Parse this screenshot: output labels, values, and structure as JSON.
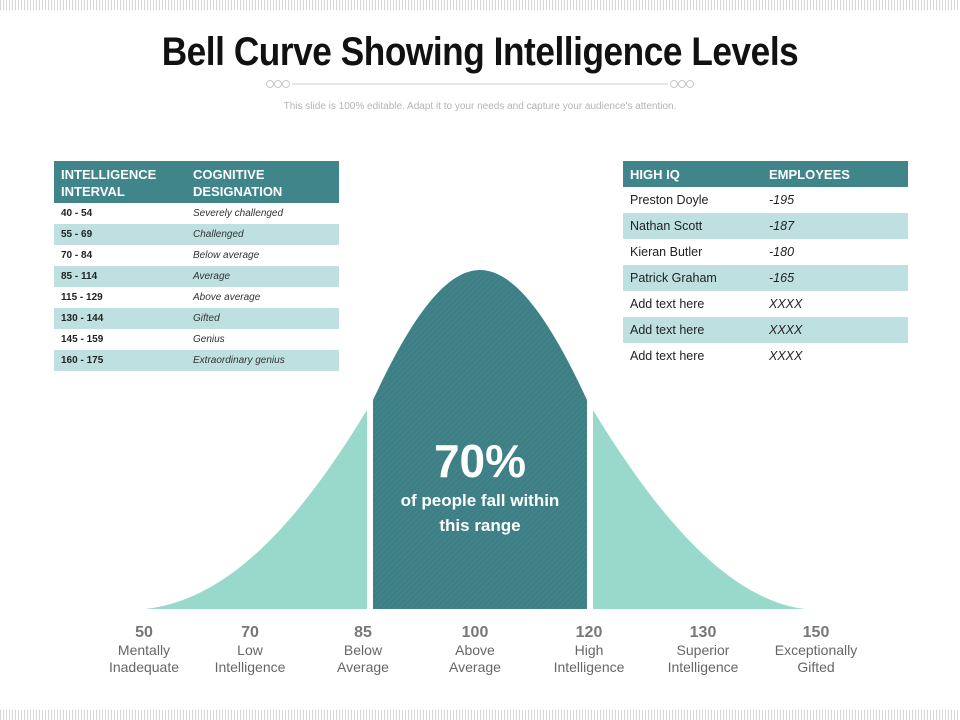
{
  "title": "Bell Curve Showing Intelligence Levels",
  "subtitle": "This slide is 100% editable. Adapt it to your needs and capture your audience's attention.",
  "colors": {
    "header": "#3f858a",
    "band": "#bfe0e0",
    "curve_light": "#99d9cc",
    "curve_dark": "#3d7f84"
  },
  "intelligence_table": {
    "headers": [
      [
        "INTELLIGENCE",
        "INTERVAL"
      ],
      [
        "COGNITIVE",
        "DESIGNATION"
      ]
    ],
    "rows": [
      {
        "interval": "40 - 54",
        "designation": "Severely challenged"
      },
      {
        "interval": "55 - 69",
        "designation": "Challenged"
      },
      {
        "interval": "70 - 84",
        "designation": "Below average"
      },
      {
        "interval": "85 - 114",
        "designation": "Average"
      },
      {
        "interval": "115 - 129",
        "designation": "Above average"
      },
      {
        "interval": "130 - 144",
        "designation": "Gifted"
      },
      {
        "interval": "145 - 159",
        "designation": "Genius"
      },
      {
        "interval": "160 - 175",
        "designation": "Extraordinary genius"
      }
    ]
  },
  "employee_table": {
    "headers": [
      "HIGH IQ",
      "EMPLOYEES"
    ],
    "rows": [
      {
        "name": "Preston Doyle",
        "value": "-195"
      },
      {
        "name": "Nathan Scott",
        "value": "-187"
      },
      {
        "name": "Kieran Butler",
        "value": "-180"
      },
      {
        "name": "Patrick Graham",
        "value": "-165"
      },
      {
        "name": "Add text here",
        "value": "XXXX"
      },
      {
        "name": "Add text here",
        "value": "XXXX"
      },
      {
        "name": "Add text here",
        "value": "XXXX"
      }
    ]
  },
  "center": {
    "percent": "70%",
    "caption_line1": "of people fall within",
    "caption_line2": "this range"
  },
  "axis": [
    {
      "value": "50",
      "line1": "Mentally",
      "line2": "Inadequate"
    },
    {
      "value": "70",
      "line1": "Low",
      "line2": "Intelligence"
    },
    {
      "value": "85",
      "line1": "Below",
      "line2": "Average"
    },
    {
      "value": "100",
      "line1": "Above",
      "line2": "Average"
    },
    {
      "value": "120",
      "line1": "High",
      "line2": "Intelligence"
    },
    {
      "value": "130",
      "line1": "Superior",
      "line2": "Intelligence"
    },
    {
      "value": "150",
      "line1": "Exceptionally",
      "line2": "Gifted"
    }
  ]
}
